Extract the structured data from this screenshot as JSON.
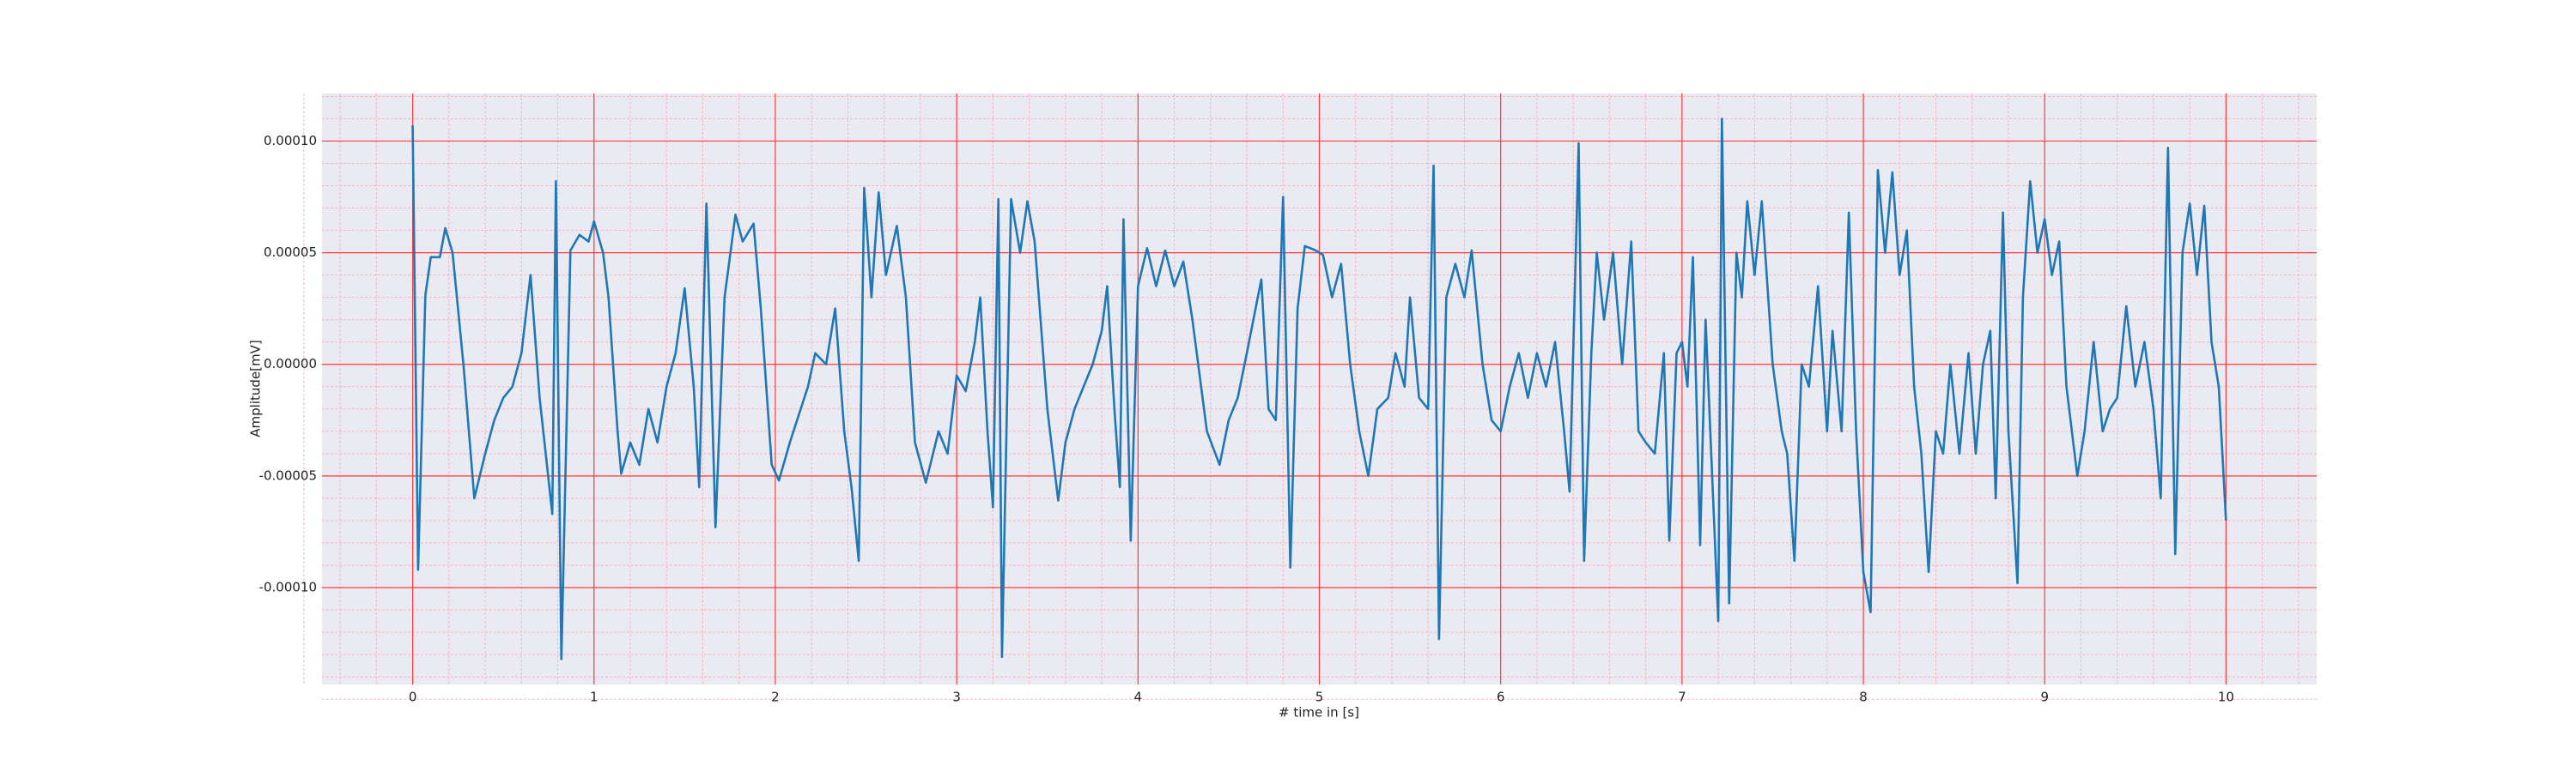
{
  "chart_data": {
    "type": "line",
    "xlabel": "# time in [s]",
    "ylabel": "Amplitude[mV]",
    "xlim": [
      -0.5,
      10.5
    ],
    "xticks": [
      0,
      1,
      2,
      3,
      4,
      5,
      6,
      7,
      8,
      9,
      10
    ],
    "ylim": [
      -0.0001434,
      0.0001213
    ],
    "yticks": [
      {
        "value": -0.0001,
        "label": "-0.00010"
      },
      {
        "value": -5e-05,
        "label": "-0.00005"
      },
      {
        "value": 0,
        "label": "0.00000"
      },
      {
        "value": 5e-05,
        "label": "0.00005"
      },
      {
        "value": 0.0001,
        "label": "0.00010"
      }
    ],
    "grid": true,
    "minor_grid": true,
    "series": [
      {
        "color": "#1f77b4",
        "x": [
          0,
          0.03,
          0.07,
          0.1,
          0.15,
          0.18,
          0.22,
          0.28,
          0.34,
          0.4,
          0.45,
          0.5,
          0.55,
          0.6,
          0.65,
          0.7,
          0.77,
          0.79,
          0.82,
          0.87,
          0.92,
          0.97,
          1.0,
          1.05,
          1.08,
          1.13,
          1.15,
          1.2,
          1.25,
          1.3,
          1.35,
          1.4,
          1.45,
          1.5,
          1.55,
          1.58,
          1.62,
          1.67,
          1.72,
          1.78,
          1.82,
          1.88,
          1.92,
          1.98,
          2.02,
          2.08,
          2.12,
          2.18,
          2.22,
          2.28,
          2.33,
          2.38,
          2.42,
          2.46,
          2.49,
          2.53,
          2.57,
          2.61,
          2.67,
          2.72,
          2.77,
          2.83,
          2.9,
          2.95,
          3.0,
          3.05,
          3.1,
          3.13,
          3.17,
          3.2,
          3.23,
          3.25,
          3.3,
          3.35,
          3.39,
          3.43,
          3.5,
          3.56,
          3.6,
          3.65,
          3.7,
          3.75,
          3.8,
          3.83,
          3.87,
          3.9,
          3.92,
          3.96,
          4.0,
          4.05,
          4.1,
          4.15,
          4.2,
          4.25,
          4.3,
          4.38,
          4.45,
          4.5,
          4.55,
          4.6,
          4.68,
          4.72,
          4.76,
          4.8,
          4.84,
          4.88,
          4.92,
          4.98,
          5.02,
          5.07,
          5.12,
          5.17,
          5.22,
          5.27,
          5.32,
          5.38,
          5.42,
          5.47,
          5.5,
          5.55,
          5.6,
          5.63,
          5.66,
          5.7,
          5.75,
          5.8,
          5.84,
          5.9,
          5.95,
          6.0,
          6.05,
          6.1,
          6.15,
          6.2,
          6.25,
          6.3,
          6.35,
          6.38,
          6.43,
          6.46,
          6.5,
          6.53,
          6.57,
          6.62,
          6.67,
          6.72,
          6.76,
          6.8,
          6.85,
          6.9,
          6.93,
          6.97,
          7.0,
          7.03,
          7.06,
          7.1,
          7.13,
          7.2,
          7.22,
          7.26,
          7.3,
          7.33,
          7.36,
          7.4,
          7.44,
          7.5,
          7.55,
          7.58,
          7.62,
          7.66,
          7.7,
          7.75,
          7.8,
          7.83,
          7.88,
          7.92,
          7.96,
          8.0,
          8.04,
          8.08,
          8.12,
          8.16,
          8.2,
          8.24,
          8.28,
          8.32,
          8.36,
          8.4,
          8.44,
          8.48,
          8.53,
          8.58,
          8.62,
          8.66,
          8.7,
          8.73,
          8.77,
          8.8,
          8.85,
          8.88,
          8.92,
          8.96,
          9.0,
          9.04,
          9.08,
          9.12,
          9.18,
          9.22,
          9.27,
          9.32,
          9.36,
          9.4,
          9.45,
          9.5,
          9.55,
          9.6,
          9.64,
          9.68,
          9.72,
          9.76,
          9.8,
          9.84,
          9.88,
          9.92,
          9.96,
          10.0
        ],
        "values": [
          0.000107,
          -9.2e-05,
          3.1e-05,
          4.8e-05,
          4.8e-05,
          6.1e-05,
          5e-05,
          0,
          -6e-05,
          -4e-05,
          -2.5e-05,
          -1.5e-05,
          -1e-05,
          5e-06,
          4e-05,
          -1.5e-05,
          -6.7e-05,
          8.2e-05,
          -0.000132,
          5.1e-05,
          5.8e-05,
          5.5e-05,
          6.4e-05,
          5e-05,
          3e-05,
          -3e-05,
          -4.9e-05,
          -3.5e-05,
          -4.5e-05,
          -2e-05,
          -3.5e-05,
          -1e-05,
          5e-06,
          3.4e-05,
          -1e-05,
          -5.5e-05,
          7.2e-05,
          -7.3e-05,
          3e-05,
          6.7e-05,
          5.5e-05,
          6.3e-05,
          2.5e-05,
          -4.5e-05,
          -5.2e-05,
          -3.5e-05,
          -2.5e-05,
          -1e-05,
          5e-06,
          0,
          2.5e-05,
          -3e-05,
          -5.5e-05,
          -8.8e-05,
          7.9e-05,
          3e-05,
          7.7e-05,
          4e-05,
          6.2e-05,
          3e-05,
          -3.5e-05,
          -5.3e-05,
          -3e-05,
          -4e-05,
          -5e-06,
          -1.2e-05,
          1e-05,
          3e-05,
          -3e-05,
          -6.4e-05,
          7.4e-05,
          -0.000131,
          7.4e-05,
          5e-05,
          7.3e-05,
          5.5e-05,
          -2e-05,
          -6.1e-05,
          -3.5e-05,
          -2e-05,
          -1e-05,
          0,
          1.5e-05,
          3.5e-05,
          -2e-05,
          -5.5e-05,
          6.5e-05,
          -7.9e-05,
          3.5e-05,
          5.2e-05,
          3.5e-05,
          5.1e-05,
          3.5e-05,
          4.6e-05,
          2e-05,
          -3e-05,
          -4.5e-05,
          -2.5e-05,
          -1.5e-05,
          5e-06,
          3.8e-05,
          -2e-05,
          -2.5e-05,
          7.5e-05,
          -9.1e-05,
          2.5e-05,
          5.3e-05,
          5.1e-05,
          4.9e-05,
          3e-05,
          4.5e-05,
          0,
          -3e-05,
          -5e-05,
          -2e-05,
          -1.5e-05,
          5e-06,
          -1e-05,
          3e-05,
          -1.5e-05,
          -2e-05,
          8.9e-05,
          -0.000123,
          3e-05,
          4.5e-05,
          3e-05,
          5.1e-05,
          0,
          -2.5e-05,
          -3e-05,
          -1e-05,
          5e-06,
          -1.5e-05,
          5e-06,
          -1e-05,
          1e-05,
          -3e-05,
          -5.7e-05,
          9.9e-05,
          -8.8e-05,
          5e-06,
          5e-05,
          2e-05,
          5e-05,
          0,
          5.5e-05,
          -3e-05,
          -3.5e-05,
          -4e-05,
          5e-06,
          -7.9e-05,
          5e-06,
          1e-05,
          -1e-05,
          4.8e-05,
          -8.1e-05,
          2e-05,
          -0.000115,
          0.00011,
          -0.000107,
          5e-05,
          3e-05,
          7.3e-05,
          4e-05,
          7.3e-05,
          0,
          -3e-05,
          -4e-05,
          -8.8e-05,
          0,
          -1e-05,
          3.5e-05,
          -3e-05,
          1.5e-05,
          -3e-05,
          6.8e-05,
          -3e-05,
          -9.3e-05,
          -0.000111,
          8.7e-05,
          5e-05,
          8.6e-05,
          4e-05,
          6e-05,
          -1e-05,
          -4e-05,
          -9.3e-05,
          -3e-05,
          -4e-05,
          0,
          -4e-05,
          5e-06,
          -4e-05,
          0,
          1.5e-05,
          -6e-05,
          6.8e-05,
          -3e-05,
          -9.8e-05,
          3e-05,
          8.2e-05,
          5e-05,
          6.5e-05,
          4e-05,
          5.5e-05,
          -1e-05,
          -5e-05,
          -3e-05,
          1e-05,
          -3e-05,
          -2e-05,
          -1.5e-05,
          2.6e-05,
          -1e-05,
          1e-05,
          -2e-05,
          -6e-05,
          9.7e-05,
          -8.5e-05,
          5e-05,
          7.2e-05,
          4e-05,
          7.1e-05,
          1e-05,
          -1e-05,
          -7e-05
        ]
      }
    ]
  }
}
